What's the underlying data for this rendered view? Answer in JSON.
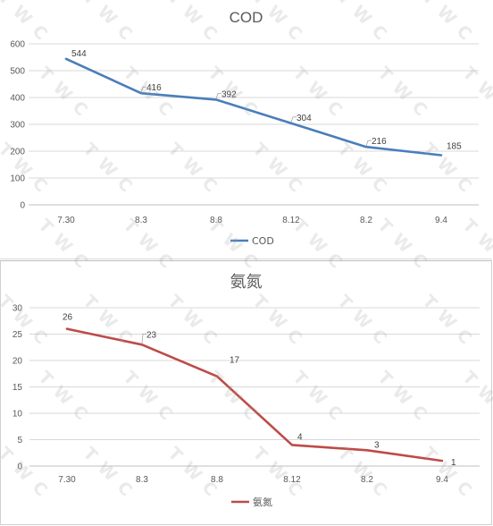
{
  "watermark": "TWC",
  "chart_data": [
    {
      "type": "line",
      "title": "COD",
      "categories": [
        "7.30",
        "8.3",
        "8.8",
        "8.12",
        "8.2",
        "9.4"
      ],
      "series": [
        {
          "name": "COD",
          "values": [
            544,
            416,
            392,
            304,
            216,
            185
          ],
          "color": "#4a7ebb"
        }
      ],
      "ylim": [
        0,
        600
      ],
      "yticks": [
        0,
        100,
        200,
        300,
        400,
        500,
        600
      ],
      "grid": true,
      "legend": "bottom"
    },
    {
      "type": "line",
      "title": "氨氮",
      "categories": [
        "7.30",
        "8.3",
        "8.8",
        "8.12",
        "8.2",
        "9.4"
      ],
      "series": [
        {
          "name": "氨氮",
          "values": [
            26,
            23,
            17,
            4,
            3,
            1
          ],
          "color": "#be4b48"
        }
      ],
      "ylim": [
        0,
        30
      ],
      "yticks": [
        0,
        5,
        10,
        15,
        20,
        25,
        30
      ],
      "grid": true,
      "legend": "bottom"
    }
  ]
}
